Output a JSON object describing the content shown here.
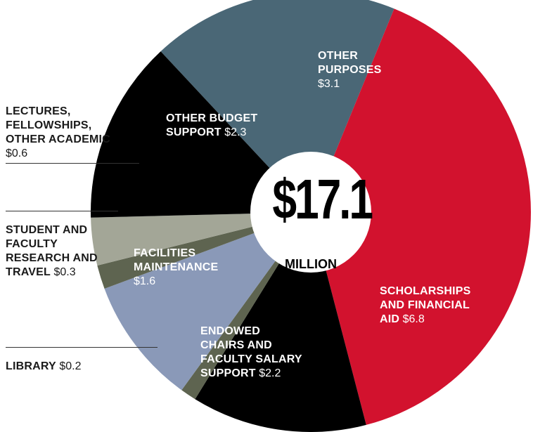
{
  "chart_data": {
    "type": "pie",
    "total": {
      "amount": "$17.1",
      "unit": "MILLION"
    },
    "slices": [
      {
        "name": "OTHER PURPOSES",
        "value": 3.1,
        "value_label": "$3.1",
        "color": "#4a6776"
      },
      {
        "name": "SCHOLARSHIPS AND FINANCIAL AID",
        "value": 6.8,
        "value_label": "$6.8",
        "color": "#d2122e"
      },
      {
        "name": "ENDOWED CHAIRS AND FACULTY SALARY SUPPORT",
        "value": 2.2,
        "value_label": "$2.2",
        "color": "#000000"
      },
      {
        "name": "LIBRARY",
        "value": 0.2,
        "value_label": "$0.2",
        "color": "#5e6450"
      },
      {
        "name": "FACILITIES MAINTENANCE",
        "value": 1.6,
        "value_label": "$1.6",
        "color": "#8a99b8"
      },
      {
        "name": "STUDENT AND FACULTY RESEARCH AND TRAVEL",
        "value": 0.3,
        "value_label": "$0.3",
        "color": "#5e6450"
      },
      {
        "name": "LECTURES, FELLOWSHIPS, OTHER ACADEMIC",
        "value": 0.6,
        "value_label": "$0.6",
        "color": "#a3a697"
      },
      {
        "name": "OTHER BUDGET SUPPORT",
        "value": 2.3,
        "value_label": "$2.3",
        "color": "#000000"
      }
    ]
  }
}
